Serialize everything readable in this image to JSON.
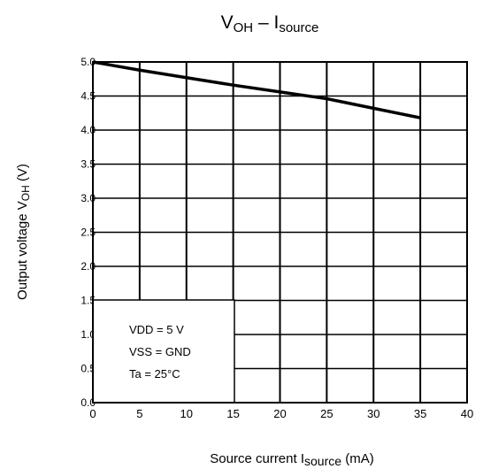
{
  "chart_data": {
    "type": "line",
    "title": {
      "main": "V",
      "sub": "OH",
      "sep": " – I",
      "sub2": "source"
    },
    "xlabel": {
      "main": "Source current   I",
      "sub": "source",
      "unit": "   (mA)"
    },
    "ylabel": {
      "main": "Output voltage   V",
      "sub": "OH",
      "unit": "   (V)"
    },
    "xlim": [
      0,
      40
    ],
    "ylim": [
      0,
      5
    ],
    "x_ticks": [
      "0",
      "5",
      "10",
      "15",
      "20",
      "25",
      "30",
      "35",
      "40"
    ],
    "y_ticks": [
      "0.0",
      "0.5",
      "1.0",
      "1.5",
      "2.0",
      "2.5",
      "3.0",
      "3.5",
      "4.0",
      "4.5",
      "5.0"
    ],
    "grid": true,
    "series": [
      {
        "x": [
          0,
          5,
          10,
          15,
          20,
          25,
          30,
          35
        ],
        "y": [
          5.0,
          4.88,
          4.77,
          4.66,
          4.56,
          4.46,
          4.32,
          4.18
        ]
      }
    ],
    "conditions": [
      "VDD = 5 V",
      "VSS = GND",
      "Ta = 25°C"
    ]
  }
}
